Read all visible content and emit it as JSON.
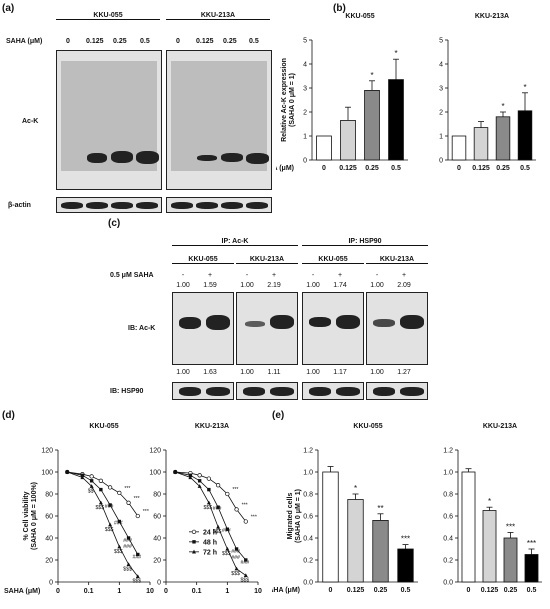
{
  "panels": {
    "a": "(a)",
    "b": "(b)",
    "c": "(c)",
    "d": "(d)",
    "e": "(e)"
  },
  "panel_a": {
    "cell_lines": [
      "KKU-055",
      "KKU-213A"
    ],
    "saha_label": "SAHA (μM)",
    "doses": [
      "0",
      "0.125",
      "0.25",
      "0.5"
    ],
    "row_labels": [
      "Ac-K",
      "β-actin"
    ]
  },
  "panel_c": {
    "ip_labels": [
      "IP: Ac-K",
      "IP: HSP90"
    ],
    "cell_lines": [
      "KKU-055",
      "KKU-213A",
      "KKU-055",
      "KKU-213A"
    ],
    "treatment_label": "0.5 μM SAHA",
    "signs": [
      "-",
      "+",
      "-",
      "+",
      "-",
      "+",
      "-",
      "+"
    ],
    "top_ratios": [
      "1.00",
      "1.59",
      "1.00",
      "2.19",
      "1.00",
      "1.74",
      "1.00",
      "2.09"
    ],
    "bottom_ratios": [
      "1.00",
      "1.63",
      "1.00",
      "1.11",
      "1.00",
      "1.17",
      "1.00",
      "1.27"
    ],
    "row_labels": [
      "IB: Ac-K",
      "IB: HSP90"
    ]
  },
  "colors": {
    "white": "#ffffff",
    "light": "#d4d4d4",
    "mid": "#8a8a8a",
    "black": "#000000"
  },
  "chart_data": [
    {
      "id": "b-left",
      "type": "bar",
      "title": "KKU-055",
      "ylabel": "Relative Ac-K expression (SAHA 0 μM = 1)",
      "xlabel": "SAHA (μM)",
      "categories": [
        "0",
        "0.125",
        "0.25",
        "0.5"
      ],
      "values": [
        1.0,
        1.65,
        2.9,
        3.35
      ],
      "errors": [
        0,
        0.55,
        0.4,
        0.85
      ],
      "sig": [
        "",
        "",
        "*",
        "*"
      ],
      "ylim": [
        0,
        5
      ],
      "yticks": [
        0,
        1,
        2,
        3,
        4,
        5
      ]
    },
    {
      "id": "b-right",
      "type": "bar",
      "title": "KKU-213A",
      "categories": [
        "0",
        "0.125",
        "0.25",
        "0.5"
      ],
      "values": [
        1.0,
        1.35,
        1.8,
        2.05
      ],
      "errors": [
        0,
        0.25,
        0.2,
        0.75
      ],
      "sig": [
        "",
        "",
        "*",
        "*"
      ],
      "ylim": [
        0,
        5
      ],
      "yticks": [
        0,
        1,
        2,
        3,
        4,
        5
      ]
    },
    {
      "id": "d-left",
      "type": "line",
      "title": "KKU-055",
      "ylabel": "% Cell viability (SAHA 0 μM = 100%)",
      "xlabel": "SAHA (μM)",
      "xscale": "log",
      "xticks": [
        "0",
        "0.1",
        "1",
        "10"
      ],
      "ylim": [
        0,
        120
      ],
      "yticks": [
        0,
        20,
        40,
        60,
        80,
        100,
        120
      ],
      "x": [
        0.02,
        0.0625,
        0.125,
        0.25,
        0.5,
        1,
        2,
        4
      ],
      "series": [
        {
          "name": "24 h",
          "values": [
            100,
            98,
            96,
            92,
            86,
            81,
            72,
            60
          ]
        },
        {
          "name": "48 h",
          "values": [
            100,
            97,
            92,
            84,
            70,
            55,
            40,
            25
          ]
        },
        {
          "name": "72 h",
          "values": [
            100,
            95,
            87,
            72,
            52,
            32,
            16,
            5
          ]
        }
      ],
      "sig_labels": [
        "***",
        "***",
        "***",
        "###",
        "###",
        "###",
        "###",
        "###",
        "$$$",
        "$$$",
        "$$$",
        "$$$",
        "$$$",
        "$$"
      ]
    },
    {
      "id": "d-right",
      "type": "line",
      "title": "KKU-213A",
      "xscale": "log",
      "xticks": [
        "0",
        "0.1",
        "1",
        "10"
      ],
      "ylim": [
        0,
        120
      ],
      "yticks": [
        0,
        20,
        40,
        60,
        80,
        100,
        120
      ],
      "x": [
        0.02,
        0.0625,
        0.125,
        0.25,
        0.5,
        1,
        2,
        4
      ],
      "series": [
        {
          "name": "24 h",
          "values": [
            100,
            99,
            97,
            94,
            88,
            80,
            66,
            55
          ]
        },
        {
          "name": "48 h",
          "values": [
            100,
            97,
            92,
            84,
            68,
            48,
            30,
            20
          ]
        },
        {
          "name": "72 h",
          "values": [
            100,
            95,
            87,
            72,
            50,
            30,
            12,
            6
          ]
        }
      ],
      "sig_labels": [
        "***",
        "***",
        "***",
        "###",
        "###",
        "###",
        "###",
        "###",
        "$$$",
        "$$$",
        "$$$",
        "$$$",
        "$$$"
      ]
    },
    {
      "id": "e-left",
      "type": "bar",
      "title": "KKU-055",
      "ylabel": "Migrated cells (SAHA 0 μM = 1)",
      "xlabel": "SAHA (μM)",
      "categories": [
        "0",
        "0.125",
        "0.25",
        "0.5"
      ],
      "values": [
        1.0,
        0.75,
        0.56,
        0.3
      ],
      "errors": [
        0.05,
        0.05,
        0.06,
        0.04
      ],
      "sig": [
        "",
        "*",
        "**",
        "***"
      ],
      "ylim": [
        0,
        1.2
      ],
      "yticks": [
        0.0,
        0.2,
        0.4,
        0.6,
        0.8,
        1.0,
        1.2
      ]
    },
    {
      "id": "e-right",
      "type": "bar",
      "title": "KKU-213A",
      "categories": [
        "0",
        "0.125",
        "0.25",
        "0.5"
      ],
      "values": [
        1.0,
        0.65,
        0.4,
        0.25
      ],
      "errors": [
        0.03,
        0.03,
        0.05,
        0.05
      ],
      "sig": [
        "",
        "*",
        "***",
        "***"
      ],
      "ylim": [
        0,
        1.2
      ],
      "yticks": [
        0.0,
        0.2,
        0.4,
        0.6,
        0.8,
        1.0,
        1.2
      ]
    }
  ]
}
